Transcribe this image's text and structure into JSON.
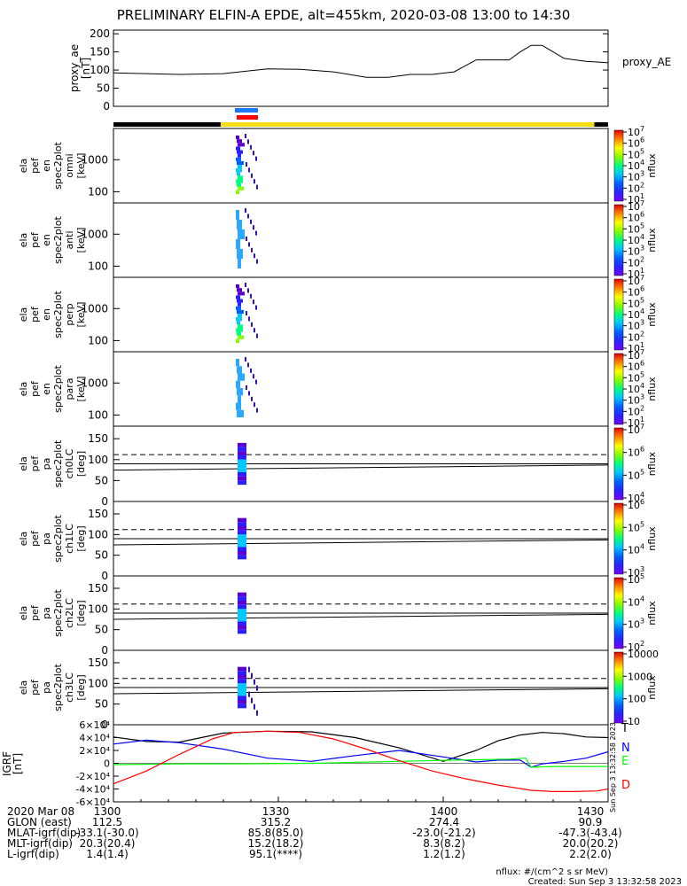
{
  "title": "PRELIMINARY ELFIN-A EPDE, alt=455km, 2020-03-08 13:00 to 14:30",
  "chart_data": [
    {
      "type": "line",
      "panel": "proxy_ae",
      "ylabel": [
        "proxy_ae",
        "[nT]"
      ],
      "legend": "proxy_AE",
      "yticks": [
        0,
        50,
        100,
        150,
        200
      ],
      "ylim": [
        0,
        210
      ],
      "xlim_min": [
        0,
        90
      ],
      "x": [
        0,
        12,
        20,
        28,
        34,
        40,
        46,
        50,
        54,
        58,
        62,
        66,
        70,
        72,
        74,
        76,
        78,
        80,
        82,
        84,
        86,
        88,
        90
      ],
      "y": [
        92,
        88,
        90,
        103,
        102,
        95,
        80,
        80,
        88,
        88,
        95,
        128,
        128,
        128,
        150,
        168,
        168,
        150,
        132,
        128,
        124,
        122,
        120
      ]
    },
    {
      "type": "heatmap",
      "panel": "ela_pef_en_spec2plot_omni",
      "ylabel": [
        "ela",
        "pef",
        "en",
        "spec2plot",
        "omni",
        "[keV]"
      ],
      "yticks": [
        "100",
        "1000"
      ],
      "colorbar_label": "nflux",
      "colorbar_ticks": [
        "10",
        "10",
        "10",
        "10",
        "10",
        "10",
        "10"
      ],
      "colorbar_exps": [
        "1",
        "2",
        "3",
        "4",
        "5",
        "6",
        "7"
      ]
    },
    {
      "type": "heatmap",
      "panel": "ela_pef_en_spec2plot_anti",
      "ylabel": [
        "ela",
        "pef",
        "en",
        "spec2plot",
        "anti",
        "[keV]"
      ],
      "yticks": [
        "100",
        "1000"
      ],
      "colorbar_label": "nflux",
      "colorbar_ticks": [
        "10",
        "10",
        "10",
        "10",
        "10",
        "10",
        "10"
      ],
      "colorbar_exps": [
        "1",
        "2",
        "3",
        "4",
        "5",
        "6",
        "7"
      ]
    },
    {
      "type": "heatmap",
      "panel": "ela_pef_en_spec2plot_perp",
      "ylabel": [
        "ela",
        "pef",
        "en",
        "spec2plot",
        "perp",
        "[keV]"
      ],
      "yticks": [
        "100",
        "1000"
      ],
      "colorbar_label": "nflux",
      "colorbar_ticks": [
        "10",
        "10",
        "10",
        "10",
        "10",
        "10",
        "10"
      ],
      "colorbar_exps": [
        "1",
        "2",
        "3",
        "4",
        "5",
        "6",
        "7"
      ]
    },
    {
      "type": "heatmap",
      "panel": "ela_pef_en_spec2plot_para",
      "ylabel": [
        "ela",
        "pef",
        "en",
        "spec2plot",
        "para",
        "[keV]"
      ],
      "yticks": [
        "100",
        "1000"
      ],
      "colorbar_label": "nflux",
      "colorbar_ticks": [
        "10",
        "10",
        "10",
        "10",
        "10",
        "10",
        "10"
      ],
      "colorbar_exps": [
        "1",
        "2",
        "3",
        "4",
        "5",
        "6",
        "7"
      ]
    },
    {
      "type": "heatmap",
      "panel": "ela_pef_pa_spec2plot_ch0LC",
      "ylabel": [
        "ela",
        "pef",
        "pa",
        "spec2plot",
        "ch0LC",
        "[deg]"
      ],
      "yticks": [
        "0",
        "50",
        "100",
        "150"
      ],
      "ylim": [
        0,
        180
      ],
      "colorbar_label": "nflux",
      "colorbar_ticks": [
        "10",
        "10",
        "10",
        "10"
      ],
      "colorbar_exps": [
        "4",
        "5",
        "6",
        "7"
      ]
    },
    {
      "type": "heatmap",
      "panel": "ela_pef_pa_spec2plot_ch1LC",
      "ylabel": [
        "ela",
        "pef",
        "pa",
        "spec2plot",
        "ch1LC",
        "[deg]"
      ],
      "yticks": [
        "0",
        "50",
        "100",
        "150"
      ],
      "ylim": [
        0,
        180
      ],
      "colorbar_label": "nflux",
      "colorbar_ticks": [
        "10",
        "10",
        "10",
        "10"
      ],
      "colorbar_exps": [
        "3",
        "4",
        "5",
        "6"
      ]
    },
    {
      "type": "heatmap",
      "panel": "ela_pef_pa_spec2plot_ch2LC",
      "ylabel": [
        "ela",
        "pef",
        "pa",
        "spec2plot",
        "ch2LC",
        "[deg]"
      ],
      "yticks": [
        "0",
        "50",
        "100",
        "150"
      ],
      "ylim": [
        0,
        180
      ],
      "colorbar_label": "nflux",
      "colorbar_ticks": [
        "10",
        "10",
        "10",
        "10"
      ],
      "colorbar_exps": [
        "2",
        "3",
        "4",
        "5"
      ]
    },
    {
      "type": "heatmap",
      "panel": "ela_pef_pa_spec2plot_ch3LC",
      "ylabel": [
        "ela",
        "pef",
        "pa",
        "spec2plot",
        "ch3LC",
        "[deg]"
      ],
      "yticks": [
        "0",
        "50",
        "100",
        "150"
      ],
      "ylim": [
        0,
        180
      ],
      "colorbar_label": "nflux",
      "colorbar_ticks": [
        "10",
        "100",
        "1000",
        "10000"
      ]
    },
    {
      "type": "line",
      "panel": "IGRF",
      "ylabel": [
        "IGRF",
        "[nT]"
      ],
      "yticks": [
        "-6×10⁴",
        "-4×10⁴",
        "-2×10⁴",
        "0",
        "2×10⁴",
        "4×10⁴",
        "6×10⁴"
      ],
      "ylim": [
        -60000,
        60000
      ],
      "xlim_min": [
        0,
        90
      ],
      "series": [
        {
          "name": "T",
          "color": "#000000",
          "x": [
            0,
            6,
            12,
            20,
            28,
            36,
            44,
            52,
            60,
            66,
            70,
            74,
            78,
            82,
            86,
            90
          ],
          "y": [
            41000,
            34000,
            33000,
            47000,
            50000,
            49000,
            40000,
            24000,
            3000,
            20000,
            35000,
            44000,
            48000,
            46000,
            41000,
            40000
          ]
        },
        {
          "name": "N",
          "color": "#0000ff",
          "x": [
            0,
            6,
            12,
            20,
            28,
            36,
            44,
            52,
            60,
            66,
            70,
            74,
            76,
            78,
            82,
            86,
            90
          ],
          "y": [
            30000,
            36000,
            32000,
            22000,
            8000,
            3000,
            12000,
            20000,
            10000,
            2000,
            5000,
            5000,
            -6000,
            -1000,
            3000,
            8000,
            18000
          ]
        },
        {
          "name": "E",
          "color": "#00ff00",
          "x": [
            0,
            12,
            20,
            28,
            36,
            44,
            52,
            60,
            66,
            72,
            75,
            76,
            80,
            86,
            90
          ],
          "y": [
            -2000,
            -1000,
            -1000,
            -500,
            0,
            1500,
            3000,
            4500,
            5500,
            6500,
            8000,
            -6000,
            -5000,
            -5000,
            -5000
          ]
        },
        {
          "name": "D",
          "color": "#ff0000",
          "x": [
            0,
            6,
            12,
            18,
            22,
            28,
            34,
            40,
            46,
            52,
            58,
            64,
            70,
            76,
            80,
            84,
            88,
            90
          ],
          "y": [
            -32000,
            -12000,
            14000,
            38000,
            48000,
            50000,
            48000,
            38000,
            22000,
            4000,
            -12000,
            -24000,
            -34000,
            -42000,
            -44000,
            -44000,
            -43000,
            -40000
          ]
        }
      ]
    }
  ],
  "xaxis": {
    "tick_labels": [
      "1300",
      "1330",
      "1400",
      "1430"
    ],
    "rows": [
      {
        "label": "2020 Mar 08",
        "values": [
          "1300",
          "1330",
          "1400",
          "1430"
        ]
      },
      {
        "label": "GLON (east)",
        "values": [
          "112.5",
          "315.2",
          "274.4",
          "90.9"
        ]
      },
      {
        "label": "MLAT-igrf(dip)",
        "values": [
          "-33.1(-30.0)",
          "85.8(85.0)",
          "-23.0(-21.2)",
          "-47.3(-43.4)"
        ]
      },
      {
        "label": "MLT-igrf(dip)",
        "values": [
          "20.3(20.4)",
          "15.2(18.2)",
          "8.3(8.2)",
          "20.0(20.2)"
        ]
      },
      {
        "label": "L-igrf(dip)",
        "values": [
          "1.4(1.4)",
          "95.1(****)",
          "1.2(1.2)",
          "2.2(2.0)"
        ]
      }
    ]
  },
  "footer": {
    "units": "nflux: #/(cm^2 s sr MeV)",
    "created": "Created: Sun Sep  3 13:32:58 2023",
    "side_stamp": "Sun Sep  3 13:32:58 2023"
  },
  "colors": {
    "yellow": "#f5dc14",
    "blue_bar": "#1e78ff",
    "red_bar": "#ff0000"
  }
}
